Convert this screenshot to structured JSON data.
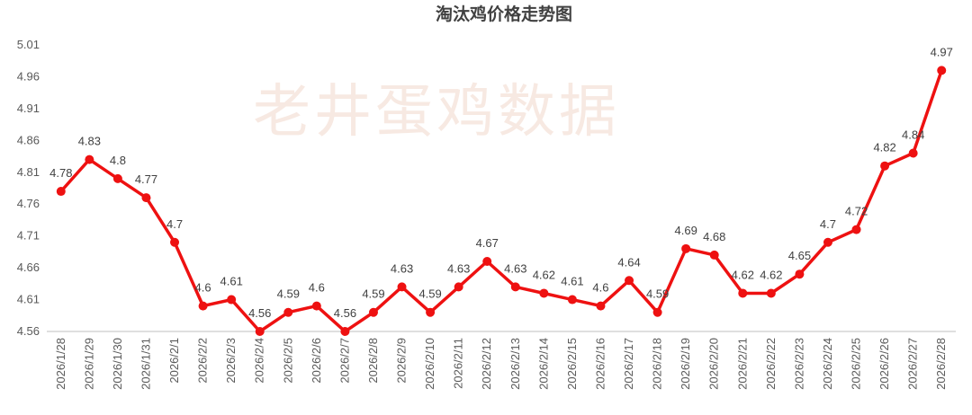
{
  "chart_data": {
    "type": "line",
    "title": "淘汰鸡价格走势图",
    "watermark": "老井蛋鸡数据",
    "xlabel": "",
    "ylabel": "",
    "ylim": [
      4.56,
      5.01
    ],
    "yticks": [
      "4.56",
      "4.61",
      "4.66",
      "4.71",
      "4.76",
      "4.81",
      "4.86",
      "4.91",
      "4.96",
      "5.01"
    ],
    "grid": false,
    "legend": "none",
    "series_color": "#ee1111",
    "categories": [
      "2026/1/28",
      "2026/1/29",
      "2026/1/30",
      "2026/1/31",
      "2026/2/1",
      "2026/2/2",
      "2026/2/3",
      "2026/2/4",
      "2026/2/5",
      "2026/2/6",
      "2026/2/7",
      "2026/2/8",
      "2026/2/9",
      "2026/2/10",
      "2026/2/11",
      "2026/2/12",
      "2026/2/13",
      "2026/2/14",
      "2026/2/15",
      "2026/2/16",
      "2026/2/17",
      "2026/2/18",
      "2026/2/19",
      "2026/2/20",
      "2026/2/21",
      "2026/2/22",
      "2026/2/23",
      "2026/2/24",
      "2026/2/25",
      "2026/2/26",
      "2026/2/27",
      "2026/2/28"
    ],
    "values": [
      4.78,
      4.83,
      4.8,
      4.77,
      4.7,
      4.6,
      4.61,
      4.56,
      4.59,
      4.6,
      4.56,
      4.59,
      4.63,
      4.59,
      4.63,
      4.67,
      4.63,
      4.62,
      4.61,
      4.6,
      4.64,
      4.59,
      4.69,
      4.68,
      4.62,
      4.62,
      4.65,
      4.7,
      4.72,
      4.82,
      4.84,
      4.97
    ],
    "data_labels": [
      "4.78",
      "4.83",
      "4.8",
      "4.77",
      "4.7",
      "4.6",
      "4.61",
      "4.56",
      "4.59",
      "4.6",
      "4.56",
      "4.59",
      "4.63",
      "4.59",
      "4.63",
      "4.67",
      "4.63",
      "4.62",
      "4.61",
      "4.6",
      "4.64",
      "4.59",
      "4.69",
      "4.68",
      "4.62",
      "4.62",
      "4.65",
      "4.7",
      "4.72",
      "4.82",
      "4.84",
      "4.97"
    ]
  }
}
